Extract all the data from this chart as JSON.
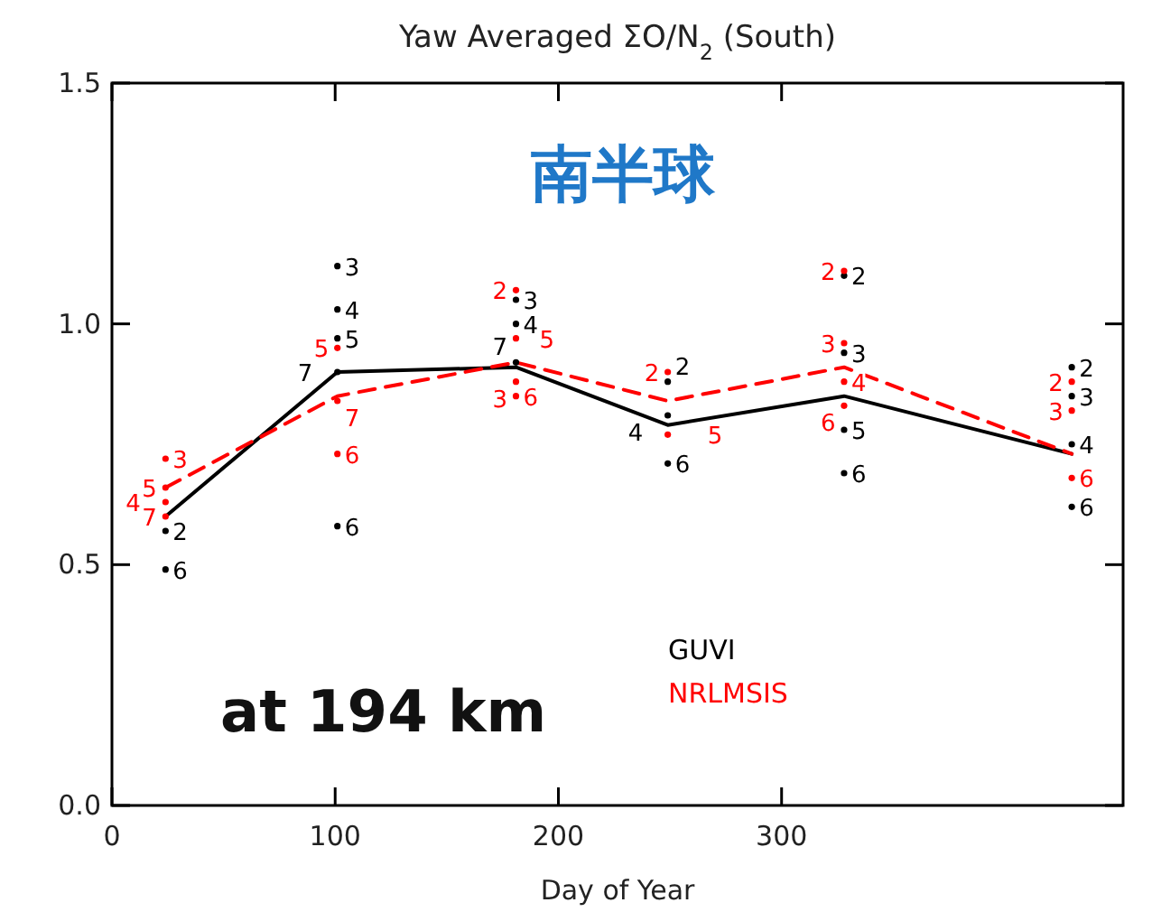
{
  "chart_data": {
    "type": "line",
    "title": "Yaw Averaged ΣO/N$_{2}$ (South)",
    "xlabel": "Day of Year",
    "xlim": [
      0,
      453
    ],
    "xticks": [
      0,
      100,
      200,
      300
    ],
    "ylim": [
      0,
      1.5
    ],
    "yticks": [
      {
        "value": 0,
        "label": "0.0"
      },
      {
        "value": 0.5,
        "label": "0.5"
      },
      {
        "value": 1,
        "label": "1.0"
      },
      {
        "value": 1.5,
        "label": "1.5"
      }
    ],
    "grid": false,
    "legend": "bottom",
    "annotations": [
      "南半球",
      "at 194 km",
      {
        "text": "6",
        "x": 24,
        "y": 0.49
      },
      {
        "text": "2",
        "x": 24,
        "y": 0.57
      },
      {
        "text": "3",
        "x": 101,
        "y": 1.12
      },
      {
        "text": "4",
        "x": 101,
        "y": 1.03
      },
      {
        "text": "5",
        "x": 101,
        "y": 0.97
      },
      {
        "text": "7",
        "x": 101,
        "y": 0.9
      },
      {
        "text": "6",
        "x": 101,
        "y": 0.58
      },
      {
        "text": "3",
        "x": 181,
        "y": 1.05
      },
      {
        "text": "4",
        "x": 181,
        "y": 1.0
      },
      {
        "text": "7",
        "x": 181,
        "y": 0.92
      },
      {
        "text": "2",
        "x": 249,
        "y": 0.88
      },
      {
        "text": "4",
        "x": 249,
        "y": 0.81
      },
      {
        "text": "6",
        "x": 249,
        "y": 0.71
      },
      {
        "text": "2",
        "x": 328,
        "y": 1.1
      },
      {
        "text": "3",
        "x": 328,
        "y": 0.94
      },
      {
        "text": "5",
        "x": 328,
        "y": 0.78
      },
      {
        "text": "6",
        "x": 328,
        "y": 0.69
      },
      {
        "text": "2",
        "x": 430,
        "y": 0.91
      },
      {
        "text": "3",
        "x": 430,
        "y": 0.85
      },
      {
        "text": "4",
        "x": 430,
        "y": 0.75
      },
      {
        "text": "6",
        "x": 430,
        "y": 0.62
      },
      {
        "text": "3",
        "x": 24,
        "y": 0.72
      },
      {
        "text": "5",
        "x": 24,
        "y": 0.66
      },
      {
        "text": "7",
        "x": 24,
        "y": 0.6
      },
      {
        "text": "5",
        "x": 101,
        "y": 0.95
      },
      {
        "text": "7",
        "x": 101,
        "y": 0.84
      },
      {
        "text": "6",
        "x": 101,
        "y": 0.73
      },
      {
        "text": "2",
        "x": 181,
        "y": 1.07
      },
      {
        "text": "5",
        "x": 181,
        "y": 0.97
      },
      {
        "text": "6",
        "x": 181,
        "y": 0.85
      },
      {
        "text": "2",
        "x": 249,
        "y": 0.9
      },
      {
        "text": "5",
        "x": 249,
        "y": 0.77
      },
      {
        "text": "2",
        "x": 328,
        "y": 1.11
      },
      {
        "text": "3",
        "x": 328,
        "y": 0.96
      },
      {
        "text": "6",
        "x": 328,
        "y": 0.83
      },
      {
        "text": "3",
        "x": 430,
        "y": 0.82
      },
      {
        "text": "6",
        "x": 430,
        "y": 0.68
      },
      {
        "text": "4",
        "x": 24,
        "y": 0.63
      },
      {
        "text": "3",
        "x": 181,
        "y": 0.88
      },
      {
        "text": "4",
        "x": 328,
        "y": 0.88
      },
      {
        "text": "2",
        "x": 430,
        "y": 0.88
      }
    ],
    "series": [
      {
        "name": "GUVI",
        "color": "#000000",
        "line_style": "solid",
        "x": [
          24,
          101,
          181,
          249,
          328,
          430
        ],
        "values": [
          0.6,
          0.9,
          0.91,
          0.79,
          0.85,
          0.73
        ]
      },
      {
        "name": "NRLMSIS",
        "color": "#ff0000",
        "line_style": "dashed",
        "x": [
          24,
          101,
          181,
          249,
          328,
          430
        ],
        "values": [
          0.66,
          0.85,
          0.92,
          0.84,
          0.91,
          0.73
        ]
      },
      {
        "type": "scatter",
        "marker": "circle",
        "color": "#000000",
        "x": [
          24,
          24,
          101,
          101,
          101,
          101,
          101,
          181,
          181,
          181,
          249,
          249,
          249,
          328,
          328,
          328,
          328,
          430,
          430,
          430,
          430
        ],
        "values": [
          0.49,
          0.57,
          1.12,
          1.03,
          0.97,
          0.9,
          0.58,
          1.05,
          1.0,
          0.92,
          0.88,
          0.81,
          0.71,
          1.1,
          0.94,
          0.78,
          0.69,
          0.91,
          0.85,
          0.75,
          0.62
        ]
      },
      {
        "type": "scatter",
        "marker": "circle",
        "color": "#ff0000",
        "x": [
          24,
          24,
          24,
          101,
          101,
          101,
          181,
          181,
          181,
          249,
          249,
          328,
          328,
          328,
          430,
          430,
          24,
          181,
          328,
          430
        ],
        "values": [
          0.72,
          0.66,
          0.6,
          0.95,
          0.84,
          0.73,
          1.07,
          0.97,
          0.85,
          0.9,
          0.77,
          1.11,
          0.96,
          0.83,
          0.82,
          0.68,
          0.63,
          0.88,
          0.88,
          0.88
        ]
      }
    ]
  }
}
